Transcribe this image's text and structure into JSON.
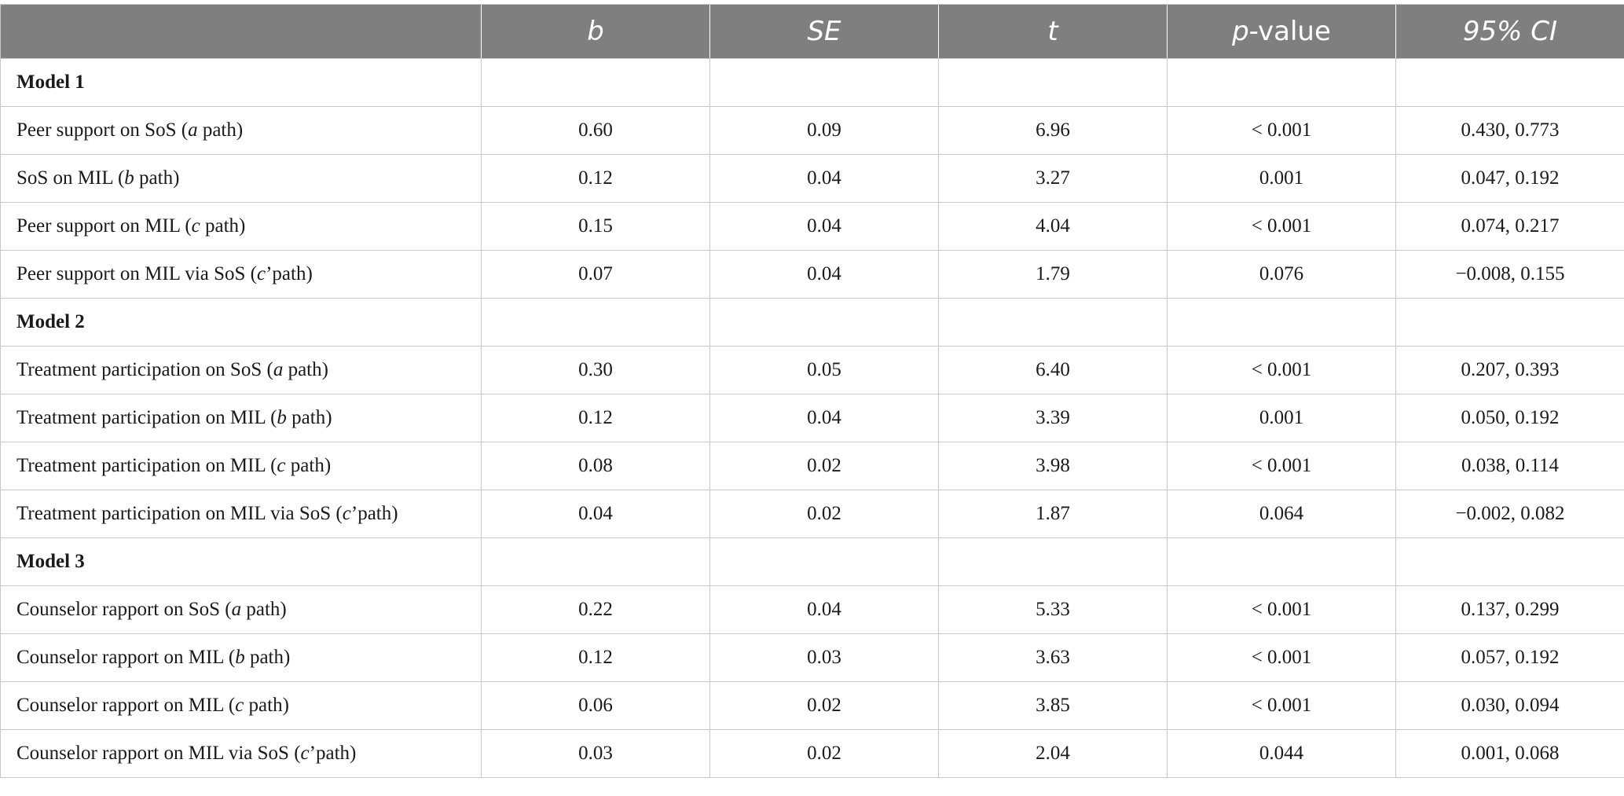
{
  "table": {
    "headers": [
      {
        "text": "",
        "italic": false
      },
      {
        "text": "b",
        "italic": true
      },
      {
        "text": "SE",
        "italic": true
      },
      {
        "text": "t",
        "italic": true
      },
      {
        "prefix": "p",
        "suffix": "-value",
        "italic": "prefix"
      },
      {
        "text": "95% CI",
        "italic": true
      }
    ],
    "rows": [
      {
        "type": "section",
        "label": "Model 1"
      },
      {
        "type": "data",
        "pre": "Peer support on SoS (",
        "ital": "a",
        "post": " path)",
        "values": [
          "0.60",
          "0.09",
          "6.96",
          "< 0.001",
          "0.430, 0.773"
        ]
      },
      {
        "type": "data",
        "pre": "SoS on MIL (",
        "ital": "b",
        "post": " path)",
        "values": [
          "0.12",
          "0.04",
          "3.27",
          "0.001",
          "0.047, 0.192"
        ]
      },
      {
        "type": "data",
        "pre": "Peer support on MIL (",
        "ital": "c",
        "post": " path)",
        "values": [
          "0.15",
          "0.04",
          "4.04",
          "< 0.001",
          "0.074, 0.217"
        ]
      },
      {
        "type": "data",
        "pre": "Peer support on MIL via SoS (",
        "ital": "c",
        "post": "’path)",
        "values": [
          "0.07",
          "0.04",
          "1.79",
          "0.076",
          "−0.008, 0.155"
        ]
      },
      {
        "type": "section",
        "label": "Model 2"
      },
      {
        "type": "data",
        "pre": "Treatment participation on SoS (",
        "ital": "a",
        "post": " path)",
        "values": [
          "0.30",
          "0.05",
          "6.40",
          "< 0.001",
          "0.207, 0.393"
        ]
      },
      {
        "type": "data",
        "pre": "Treatment participation on MIL (",
        "ital": "b",
        "post": " path)",
        "values": [
          "0.12",
          "0.04",
          "3.39",
          "0.001",
          "0.050, 0.192"
        ]
      },
      {
        "type": "data",
        "pre": "Treatment participation on MIL (",
        "ital": "c",
        "post": " path)",
        "values": [
          "0.08",
          "0.02",
          "3.98",
          "< 0.001",
          "0.038, 0.114"
        ]
      },
      {
        "type": "data",
        "pre": "Treatment participation on MIL via SoS (",
        "ital": "c",
        "post": "’path)",
        "values": [
          "0.04",
          "0.02",
          "1.87",
          "0.064",
          "−0.002, 0.082"
        ]
      },
      {
        "type": "section",
        "label": "Model 3"
      },
      {
        "type": "data",
        "pre": "Counselor rapport on SoS (",
        "ital": "a",
        "post": " path)",
        "values": [
          "0.22",
          "0.04",
          "5.33",
          "< 0.001",
          "0.137, 0.299"
        ]
      },
      {
        "type": "data",
        "pre": "Counselor rapport on MIL (",
        "ital": "b",
        "post": " path)",
        "values": [
          "0.12",
          "0.03",
          "3.63",
          "< 0.001",
          "0.057, 0.192"
        ]
      },
      {
        "type": "data",
        "pre": "Counselor rapport on MIL (",
        "ital": "c",
        "post": " path)",
        "values": [
          "0.06",
          "0.02",
          "3.85",
          "< 0.001",
          "0.030, 0.094"
        ]
      },
      {
        "type": "data",
        "pre": "Counselor rapport on MIL via SoS (",
        "ital": "c",
        "post": "’path)",
        "values": [
          "0.03",
          "0.02",
          "2.04",
          "0.044",
          "0.001, 0.068"
        ]
      }
    ]
  },
  "colors": {
    "header_bg": "#7f7f7f",
    "header_text": "#ffffff",
    "grid": "#c8c8c8",
    "body_text": "#1a1a1a"
  }
}
